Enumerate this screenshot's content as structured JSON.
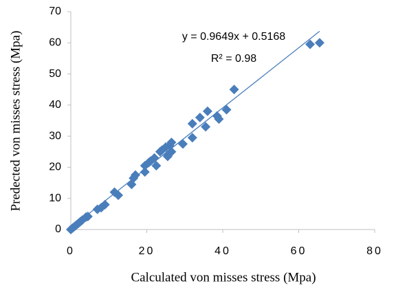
{
  "chart_data": {
    "type": "scatter",
    "x_label": "Calculated von misses stress (Mpa)",
    "y_label": "Predected von misses stress (Mpa)",
    "color": "#4a7ebb",
    "x": [
      0,
      0.5,
      1,
      1.5,
      2,
      2.5,
      3,
      4,
      4.5,
      7,
      8,
      9,
      11.5,
      12.5,
      16,
      16.5,
      17,
      19.5,
      19.5,
      20.5,
      21,
      22,
      22.5,
      23.5,
      24,
      25,
      25.5,
      25.5,
      26,
      26,
      26.5,
      26.5,
      29.5,
      32,
      32,
      34,
      35.5,
      36,
      38.5,
      39,
      41,
      43,
      63,
      65.5
    ],
    "values": [
      0,
      0.5,
      1,
      1.5,
      2,
      2.5,
      3,
      4,
      4.2,
      6.5,
      7,
      8,
      12,
      11,
      14.5,
      16.5,
      17.5,
      18.5,
      20.5,
      21.5,
      22,
      23,
      20.5,
      25,
      25.5,
      26.5,
      24,
      23.5,
      27,
      24.5,
      28,
      25,
      27.5,
      29.5,
      34,
      36,
      33,
      38,
      36.5,
      35.5,
      38.5,
      45,
      59.5,
      60
    ],
    "xlim": [
      0,
      80
    ],
    "xticks": [
      0,
      20,
      40,
      60,
      80
    ],
    "ylim": [
      0,
      70
    ],
    "yticks": [
      0,
      10,
      20,
      30,
      40,
      50,
      60,
      70
    ],
    "grid": false,
    "trendline": {
      "equation": "y = 0.9649x + 0.5168",
      "r_squared_label": "R² = 0.98",
      "slope": 0.9649,
      "intercept": 0.5168
    }
  }
}
